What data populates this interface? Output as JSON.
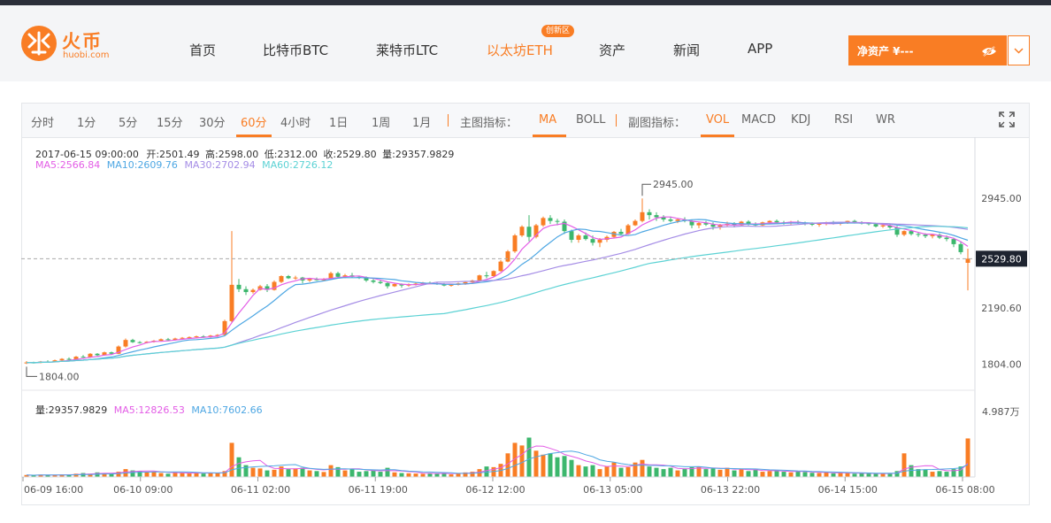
{
  "header": {
    "logo_name": "火币",
    "logo_sub": "huobi.com",
    "nav": [
      "首页",
      "比特币BTC",
      "莱特币LTC",
      "以太坊ETH",
      "资产",
      "新闻",
      "APP"
    ],
    "active_nav": "以太坊ETH",
    "eth_badge": "创新区",
    "net_assets_label": "净资产 ¥---"
  },
  "toolbar": {
    "periods": [
      "分时",
      "1分",
      "5分",
      "15分",
      "30分",
      "60分",
      "4小时",
      "1日",
      "1周",
      "1月"
    ],
    "active_period": "60分",
    "main_indicator_label": "主图指标：",
    "main_indicators": [
      "MA",
      "BOLL"
    ],
    "active_main": "MA",
    "sub_indicator_label": "副图指标：",
    "sub_indicators": [
      "VOL",
      "MACD",
      "KDJ",
      "RSI",
      "WR"
    ],
    "active_sub": "VOL"
  },
  "info": {
    "time": "2017-06-15 09:00:00",
    "open": "开:2501.49",
    "high": "高:2598.00",
    "low": "低:2312.00",
    "close": "收:2529.80",
    "volume": "量:29357.9829",
    "ma5": "MA5:2566.84",
    "ma10": "MA10:2609.76",
    "ma30": "MA30:2702.94",
    "ma60": "MA60:2726.12",
    "vol_info": "量:29357.9829",
    "vol_ma5": "MA5:12826.53",
    "vol_ma10": "MA10:7602.66"
  },
  "colors": {
    "accent": "#f97d24",
    "up": "#f97d24",
    "down": "#3cb76d",
    "ma5": "#e35de6",
    "ma10": "#4ea7e3",
    "ma30": "#a58de6",
    "ma60": "#5cd2d4"
  },
  "chart_data": {
    "type": "candlestick",
    "price_axis_ticks": [
      "2945.00",
      "2190.60",
      "1804.00"
    ],
    "current_price": "2529.80",
    "max_label": "2945.00",
    "min_label": "1804.00",
    "volume_axis_tick": "4.987万",
    "x_ticks": [
      "06-09 16:00",
      "06-10 09:00",
      "06-11 02:00",
      "06-11 19:00",
      "06-12 12:00",
      "06-13 05:00",
      "06-13 22:00",
      "06-14 15:00",
      "06-15 08:00"
    ],
    "price_range": [
      1770,
      3050
    ],
    "volume_max": 49870,
    "ohlc": [
      [
        1810,
        1825,
        1804,
        1815
      ],
      [
        1815,
        1820,
        1808,
        1812
      ],
      [
        1812,
        1826,
        1810,
        1822
      ],
      [
        1822,
        1830,
        1815,
        1818
      ],
      [
        1818,
        1835,
        1815,
        1830
      ],
      [
        1830,
        1845,
        1825,
        1840
      ],
      [
        1840,
        1850,
        1830,
        1835
      ],
      [
        1835,
        1860,
        1832,
        1855
      ],
      [
        1855,
        1866,
        1848,
        1850
      ],
      [
        1850,
        1880,
        1846,
        1875
      ],
      [
        1875,
        1880,
        1860,
        1865
      ],
      [
        1865,
        1890,
        1862,
        1885
      ],
      [
        1885,
        1890,
        1870,
        1875
      ],
      [
        1875,
        1932,
        1872,
        1925
      ],
      [
        1925,
        1980,
        1918,
        1970
      ],
      [
        1970,
        1978,
        1950,
        1955
      ],
      [
        1955,
        1962,
        1945,
        1950
      ],
      [
        1950,
        1962,
        1946,
        1958
      ],
      [
        1958,
        1970,
        1952,
        1965
      ],
      [
        1965,
        1980,
        1960,
        1975
      ],
      [
        1975,
        1984,
        1966,
        1970
      ],
      [
        1970,
        1986,
        1966,
        1980
      ],
      [
        1980,
        1990,
        1974,
        1985
      ],
      [
        1985,
        1995,
        1978,
        1990
      ],
      [
        1990,
        2000,
        1982,
        1995
      ],
      [
        1995,
        2003,
        1985,
        1990
      ],
      [
        1990,
        2005,
        1986,
        2000
      ],
      [
        2000,
        2010,
        1990,
        2005
      ],
      [
        2005,
        2110,
        2000,
        2100
      ],
      [
        2100,
        2720,
        2090,
        2350
      ],
      [
        2350,
        2390,
        2300,
        2320
      ],
      [
        2320,
        2340,
        2280,
        2300
      ],
      [
        2300,
        2325,
        2290,
        2315
      ],
      [
        2315,
        2350,
        2310,
        2340
      ],
      [
        2340,
        2355,
        2300,
        2315
      ],
      [
        2315,
        2380,
        2310,
        2370
      ],
      [
        2370,
        2415,
        2362,
        2410
      ],
      [
        2410,
        2418,
        2390,
        2395
      ],
      [
        2395,
        2412,
        2385,
        2400
      ],
      [
        2400,
        2405,
        2360,
        2380
      ],
      [
        2380,
        2395,
        2370,
        2390
      ],
      [
        2390,
        2400,
        2378,
        2382
      ],
      [
        2382,
        2396,
        2375,
        2390
      ],
      [
        2390,
        2440,
        2385,
        2430
      ],
      [
        2430,
        2440,
        2400,
        2405
      ],
      [
        2405,
        2425,
        2395,
        2415
      ],
      [
        2415,
        2432,
        2400,
        2405
      ],
      [
        2405,
        2412,
        2390,
        2400
      ],
      [
        2400,
        2408,
        2370,
        2380
      ],
      [
        2380,
        2390,
        2360,
        2370
      ],
      [
        2370,
        2385,
        2355,
        2362
      ],
      [
        2362,
        2370,
        2325,
        2340
      ],
      [
        2340,
        2365,
        2335,
        2355
      ],
      [
        2355,
        2360,
        2330,
        2345
      ],
      [
        2345,
        2360,
        2338,
        2355
      ],
      [
        2355,
        2365,
        2345,
        2358
      ],
      [
        2358,
        2370,
        2350,
        2365
      ],
      [
        2365,
        2372,
        2355,
        2360
      ],
      [
        2360,
        2370,
        2350,
        2355
      ],
      [
        2355,
        2362,
        2340,
        2345
      ],
      [
        2345,
        2355,
        2338,
        2350
      ],
      [
        2350,
        2365,
        2345,
        2360
      ],
      [
        2360,
        2372,
        2350,
        2368
      ],
      [
        2368,
        2385,
        2360,
        2380
      ],
      [
        2380,
        2420,
        2375,
        2415
      ],
      [
        2415,
        2440,
        2395,
        2410
      ],
      [
        2410,
        2450,
        2405,
        2445
      ],
      [
        2445,
        2520,
        2440,
        2510
      ],
      [
        2510,
        2590,
        2505,
        2580
      ],
      [
        2580,
        2700,
        2570,
        2690
      ],
      [
        2690,
        2760,
        2680,
        2750
      ],
      [
        2750,
        2830,
        2650,
        2680
      ],
      [
        2680,
        2770,
        2670,
        2760
      ],
      [
        2760,
        2820,
        2750,
        2810
      ],
      [
        2810,
        2830,
        2770,
        2790
      ],
      [
        2790,
        2805,
        2760,
        2785
      ],
      [
        2785,
        2800,
        2700,
        2720
      ],
      [
        2720,
        2730,
        2640,
        2660
      ],
      [
        2660,
        2700,
        2640,
        2690
      ],
      [
        2690,
        2710,
        2655,
        2665
      ],
      [
        2665,
        2690,
        2620,
        2640
      ],
      [
        2640,
        2672,
        2610,
        2660
      ],
      [
        2660,
        2690,
        2645,
        2680
      ],
      [
        2680,
        2720,
        2670,
        2715
      ],
      [
        2715,
        2735,
        2690,
        2700
      ],
      [
        2700,
        2770,
        2695,
        2760
      ],
      [
        2760,
        2800,
        2755,
        2790
      ],
      [
        2790,
        2945,
        2780,
        2850
      ],
      [
        2850,
        2870,
        2800,
        2830
      ],
      [
        2830,
        2850,
        2790,
        2815
      ],
      [
        2815,
        2830,
        2785,
        2800
      ],
      [
        2800,
        2820,
        2780,
        2790
      ],
      [
        2790,
        2810,
        2775,
        2800
      ],
      [
        2800,
        2815,
        2780,
        2790
      ],
      [
        2790,
        2800,
        2740,
        2760
      ],
      [
        2760,
        2785,
        2740,
        2775
      ],
      [
        2775,
        2790,
        2755,
        2765
      ],
      [
        2765,
        2780,
        2730,
        2750
      ],
      [
        2750,
        2770,
        2730,
        2760
      ],
      [
        2760,
        2785,
        2750,
        2770
      ],
      [
        2770,
        2782,
        2745,
        2760
      ],
      [
        2760,
        2790,
        2755,
        2785
      ],
      [
        2785,
        2795,
        2760,
        2770
      ],
      [
        2770,
        2780,
        2750,
        2760
      ],
      [
        2760,
        2785,
        2755,
        2780
      ],
      [
        2780,
        2795,
        2770,
        2790
      ],
      [
        2790,
        2800,
        2775,
        2780
      ],
      [
        2780,
        2790,
        2765,
        2775
      ],
      [
        2775,
        2790,
        2765,
        2785
      ],
      [
        2785,
        2795,
        2770,
        2775
      ],
      [
        2775,
        2785,
        2760,
        2770
      ],
      [
        2770,
        2780,
        2755,
        2765
      ],
      [
        2765,
        2775,
        2750,
        2770
      ],
      [
        2770,
        2785,
        2760,
        2780
      ],
      [
        2780,
        2790,
        2765,
        2770
      ],
      [
        2770,
        2785,
        2760,
        2780
      ],
      [
        2780,
        2792,
        2770,
        2790
      ],
      [
        2790,
        2798,
        2772,
        2778
      ],
      [
        2778,
        2788,
        2766,
        2775
      ],
      [
        2775,
        2782,
        2760,
        2768
      ],
      [
        2768,
        2775,
        2745,
        2752
      ],
      [
        2752,
        2765,
        2742,
        2760
      ],
      [
        2760,
        2770,
        2735,
        2745
      ],
      [
        2745,
        2755,
        2680,
        2695
      ],
      [
        2695,
        2725,
        2685,
        2720
      ],
      [
        2720,
        2730,
        2690,
        2700
      ],
      [
        2700,
        2712,
        2680,
        2695
      ],
      [
        2695,
        2705,
        2672,
        2685
      ],
      [
        2685,
        2700,
        2670,
        2695
      ],
      [
        2695,
        2705,
        2665,
        2675
      ],
      [
        2675,
        2690,
        2650,
        2665
      ],
      [
        2665,
        2675,
        2610,
        2630
      ],
      [
        2630,
        2650,
        2560,
        2575
      ],
      [
        2501.49,
        2598,
        2312,
        2529.8
      ]
    ],
    "volume": [
      1500,
      1200,
      1800,
      1400,
      1600,
      2000,
      1500,
      2500,
      3000,
      2500,
      3500,
      2800,
      2600,
      4000,
      6000,
      5000,
      4500,
      3500,
      4000,
      3000,
      2500,
      3500,
      3000,
      2800,
      3200,
      2600,
      3400,
      3000,
      4500,
      26000,
      15000,
      9000,
      7000,
      6500,
      5000,
      5500,
      8000,
      6000,
      6500,
      7000,
      5000,
      4500,
      3800,
      9000,
      7500,
      5000,
      6000,
      4000,
      4500,
      5000,
      4000,
      7000,
      3500,
      3000,
      2800,
      2600,
      2400,
      3000,
      2500,
      3200,
      2000,
      2800,
      3500,
      4000,
      6000,
      8000,
      7500,
      10000,
      18000,
      26000,
      24000,
      30000,
      20000,
      17000,
      18000,
      15000,
      16000,
      13000,
      9000,
      8000,
      9000,
      6000,
      8000,
      11000,
      7000,
      7500,
      11000,
      13000,
      8000,
      7000,
      6000,
      7000,
      5000,
      6500,
      7500,
      8000,
      6000,
      6500,
      5500,
      7000,
      5000,
      6000,
      4500,
      5500,
      4000,
      4500,
      5000,
      4000,
      3500,
      4500,
      3800,
      3200,
      3000,
      3500,
      2800,
      3200,
      3000,
      2500,
      2800,
      2600,
      2400,
      3000,
      2500,
      4500,
      18000,
      9000,
      6000,
      5500,
      4000,
      4500,
      4000,
      6000,
      8000,
      29357.9829
    ]
  }
}
